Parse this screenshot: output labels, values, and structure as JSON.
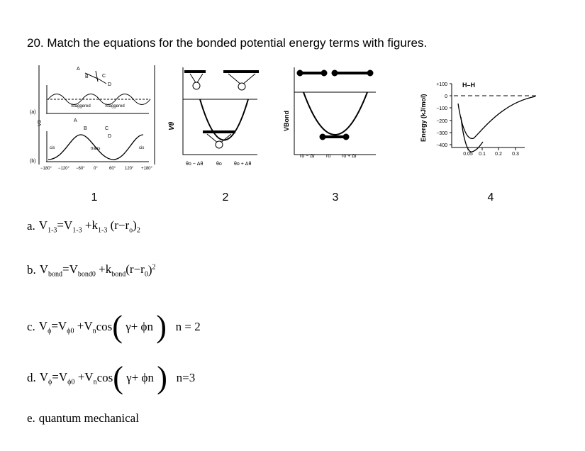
{
  "question": "20.  Match the equations for the bonded potential energy terms with figures.",
  "figures": [
    {
      "label": "1",
      "texts": [
        "A",
        "B",
        "C",
        "D",
        "Staggered",
        "Staggered",
        "(a)",
        "V3",
        "A",
        "B",
        "C",
        "D",
        "cis",
        "trans",
        "cis",
        "(b)",
        "−180°",
        "−120°",
        "−60°",
        "0°",
        "60°",
        "120°",
        "+180°"
      ]
    },
    {
      "label": "2",
      "texts": [
        "Vθ",
        "θo − Δθ",
        "θo",
        "θo + Δθ"
      ]
    },
    {
      "label": "3",
      "texts": [
        "VBond",
        "ro − Δr",
        "ro",
        "ro + Δr"
      ]
    },
    {
      "label": "4",
      "texts": [
        "Energy (kJ/mol)",
        "H–H",
        "+100",
        "0",
        "−100",
        "−200",
        "−300",
        "−400",
        "0.05",
        "0.1",
        "0.2",
        "0.3"
      ]
    }
  ],
  "options": [
    {
      "letter": "a.",
      "parts": [
        {
          "base": "V",
          "sub": "1-3"
        },
        {
          "base": "=V",
          "sub": "1-3"
        },
        {
          "base": " +k",
          "sub": "1-3"
        },
        {
          "base": " (r−r",
          "sub": "o"
        },
        {
          "base": ")",
          "sub": "2"
        }
      ]
    },
    {
      "letter": "b.",
      "parts": [
        {
          "base": "V",
          "sub": "bond"
        },
        {
          "base": "=V",
          "sub": "bond0"
        },
        {
          "base": " +k",
          "sub": "bond"
        },
        {
          "base": "(r−r",
          "sub": "0"
        },
        {
          "base": ")",
          "sup": "2"
        }
      ]
    },
    {
      "letter": "c.",
      "parts": [
        {
          "base": "V",
          "sub": "ϕ"
        },
        {
          "base": "=V",
          "sub": "ϕ0"
        },
        {
          "base": " +V",
          "sub": "n"
        },
        {
          "base": "cos"
        },
        {
          "big": "("
        },
        {
          "base": " γ+ ϕn "
        },
        {
          "big": ")"
        },
        {
          "base": "   n = 2"
        }
      ]
    },
    {
      "letter": "d.",
      "parts": [
        {
          "base": "V",
          "sub": "ϕ"
        },
        {
          "base": "=V",
          "sub": "ϕ0"
        },
        {
          "base": " +V",
          "sub": "n"
        },
        {
          "base": "cos"
        },
        {
          "big": "("
        },
        {
          "base": " γ+ ϕn "
        },
        {
          "big": ")"
        },
        {
          "base": "   n=3"
        }
      ]
    },
    {
      "letter": "e.",
      "parts": [
        {
          "base": "quantum mechanical"
        }
      ]
    }
  ]
}
